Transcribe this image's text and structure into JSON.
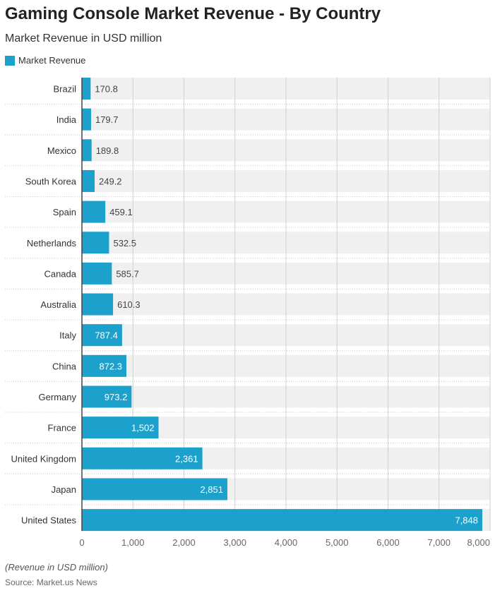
{
  "chart_data": {
    "type": "bar",
    "orientation": "horizontal",
    "title": "Gaming Console Market Revenue - By Country",
    "subtitle": "Market Revenue in USD million",
    "categories": [
      "Brazil",
      "India",
      "Mexico",
      "South Korea",
      "Spain",
      "Netherlands",
      "Canada",
      "Australia",
      "Italy",
      "China",
      "Germany",
      "France",
      "United Kingdom",
      "Japan",
      "United States"
    ],
    "series": [
      {
        "name": "Market Revenue",
        "values": [
          170.8,
          179.7,
          189.8,
          249.2,
          459.1,
          532.5,
          585.7,
          610.3,
          787.4,
          872.3,
          973.2,
          1502,
          2361,
          2851,
          7848
        ],
        "color": "#1ba1cc"
      }
    ],
    "value_labels": [
      "170.8",
      "179.7",
      "189.8",
      "249.2",
      "459.1",
      "532.5",
      "585.7",
      "610.3",
      "787.4",
      "872.3",
      "973.2",
      "1,502",
      "2,361",
      "2,851",
      "7,848"
    ],
    "xlim": [
      0,
      8000
    ],
    "xticks": [
      0,
      1000,
      2000,
      3000,
      4000,
      5000,
      6000,
      7000,
      8000
    ],
    "xtick_labels": [
      "0",
      "1,000",
      "2,000",
      "3,000",
      "4,000",
      "5,000",
      "6,000",
      "7,000",
      "8,000"
    ],
    "grid": true,
    "legend": "top-left",
    "note": "(Revenue in USD million)",
    "source": "Source: Market.us News"
  }
}
